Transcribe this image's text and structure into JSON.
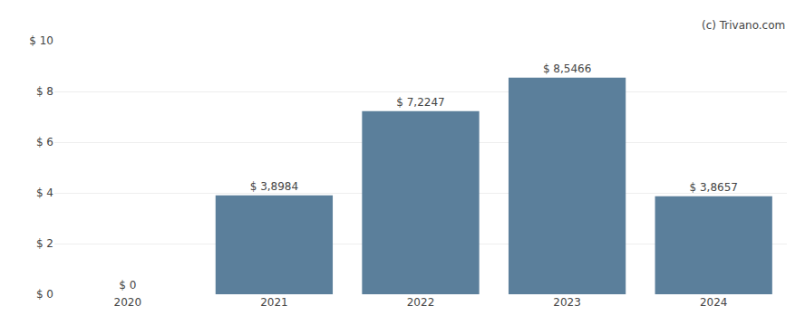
{
  "chart_data": {
    "type": "bar",
    "categories": [
      "2020",
      "2021",
      "2022",
      "2023",
      "2024"
    ],
    "values": [
      0,
      3.8984,
      7.2247,
      8.5466,
      3.8657
    ],
    "value_labels": [
      "$ 0",
      "$ 3,8984",
      "$ 7,2247",
      "$ 8,5466",
      "$ 3,8657"
    ],
    "data_labels": true,
    "color": "#5b7f9b",
    "ylim": [
      0,
      10
    ],
    "yticks": [
      {
        "value": 0,
        "label": "$ 0"
      },
      {
        "value": 2,
        "label": "$ 2"
      },
      {
        "value": 4,
        "label": "$ 4"
      },
      {
        "value": 6,
        "label": "$ 6"
      },
      {
        "value": 8,
        "label": "$ 8"
      },
      {
        "value": 10,
        "label": "$ 10"
      }
    ],
    "grid": true,
    "annotations": [
      "(c) Trivano.com"
    ]
  }
}
